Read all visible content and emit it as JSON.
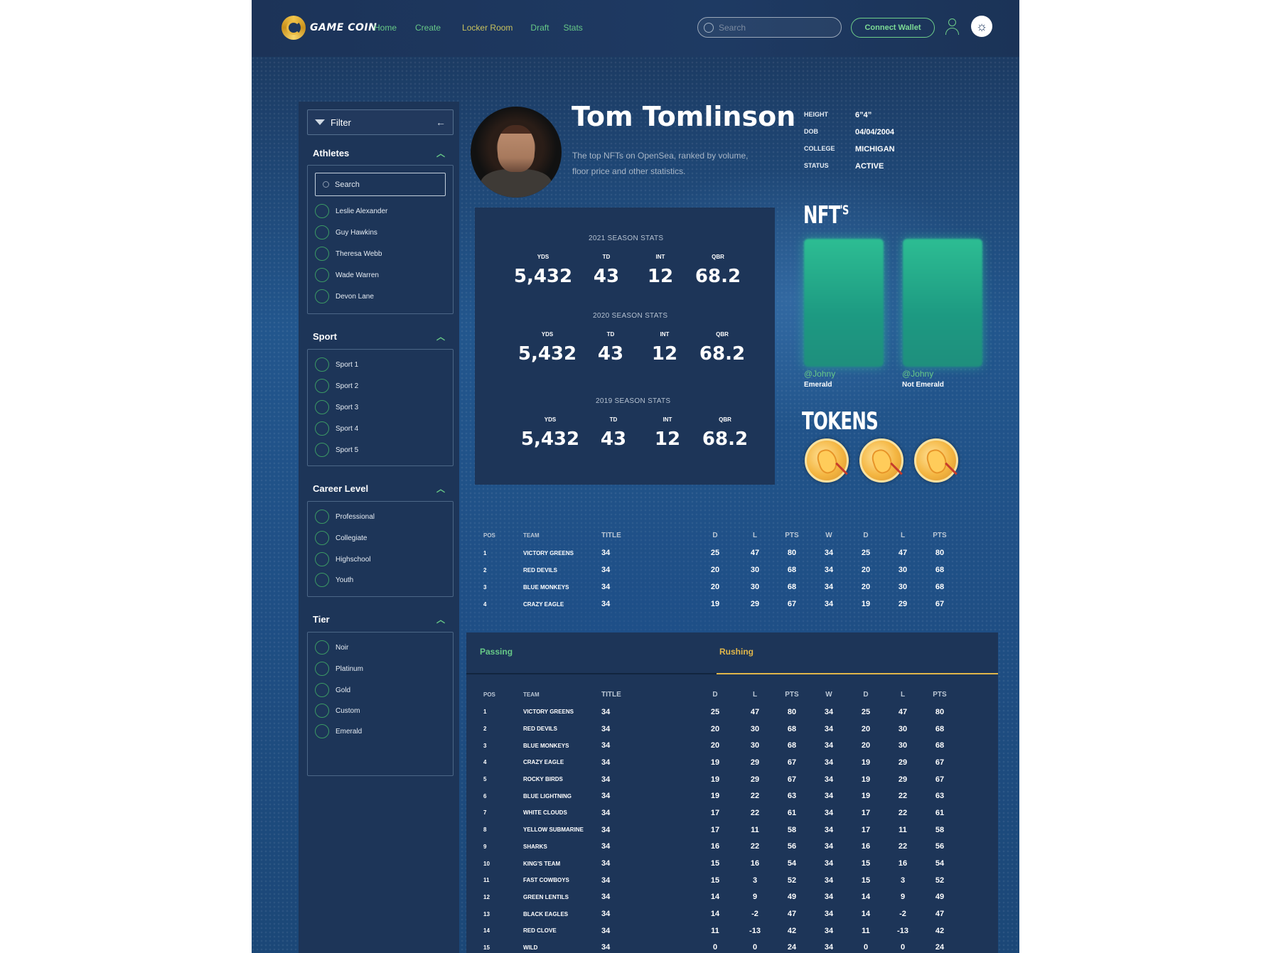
{
  "app": {
    "brand": "GAME COIN"
  },
  "nav": {
    "items": [
      "Home",
      "Create",
      "Locker Room",
      "Draft",
      "Stats"
    ]
  },
  "header": {
    "search_placeholder": "Search",
    "wallet_label": "Connect Wallet",
    "icons": [
      "user-icon",
      "sun-icon"
    ]
  },
  "filter": {
    "label": "Filter",
    "athletes": {
      "title": "Athletes",
      "search_placeholder": "Search",
      "items": [
        "Leslie Alexander",
        "Guy Hawkins",
        "Theresa Webb",
        "Wade Warren",
        "Devon Lane"
      ]
    },
    "sport": {
      "title": "Sport",
      "items": [
        "Sport 1",
        "Sport 2",
        "Sport 3",
        "Sport 4",
        "Sport 5"
      ]
    },
    "career": {
      "title": "Career Level",
      "items": [
        "Professional",
        "Collegiate",
        "Highschool",
        "Youth"
      ]
    },
    "tier": {
      "title": "Tier",
      "items": [
        "Noir",
        "Platinum",
        "Gold",
        "Custom",
        "Emerald"
      ]
    }
  },
  "player": {
    "name": "Tom Tomlinson",
    "tagline": "The top NFTs on OpenSea, ranked by volume, floor price and other statistics.",
    "info": [
      {
        "k": "HEIGHT",
        "v": "6”4”"
      },
      {
        "k": "DOB",
        "v": "04/04/2004"
      },
      {
        "k": "COLLEGE",
        "v": "MICHIGAN"
      },
      {
        "k": "STATUS",
        "v": "ACTIVE"
      }
    ]
  },
  "seasons": [
    {
      "title": "2021 SEASON STATS",
      "labels": [
        "YDS",
        "TD",
        "INT",
        "QBR"
      ],
      "values": [
        "5,432",
        "43",
        "12",
        "68.2"
      ]
    },
    {
      "title": "2020 SEASON STATS",
      "labels": [
        "YDS",
        "TD",
        "INT",
        "QBR"
      ],
      "values": [
        "5,432",
        "43",
        "12",
        "68.2"
      ]
    },
    {
      "title": "2019 SEASON STATS",
      "labels": [
        "YDS",
        "TD",
        "INT",
        "QBR"
      ],
      "values": [
        "5,432",
        "43",
        "12",
        "68.2"
      ]
    }
  ],
  "nfts": {
    "title": "NFT",
    "sup": "'S",
    "cards": [
      {
        "handle": "@Johny",
        "label": "Emerald"
      },
      {
        "handle": "@Johny",
        "label": "Not Emerald"
      }
    ]
  },
  "tokens": {
    "title": "TOKENS",
    "count": 3
  },
  "columns": [
    "POS",
    "TEAM",
    "TITLE",
    "D",
    "L",
    "PTS",
    "W",
    "D",
    "L",
    "PTS"
  ],
  "table1": [
    [
      "1",
      "VICTORY GREENS",
      "34",
      "25",
      "47",
      "80",
      "34",
      "25",
      "47",
      "80"
    ],
    [
      "2",
      "RED DEVILS",
      "34",
      "20",
      "30",
      "68",
      "34",
      "20",
      "30",
      "68"
    ],
    [
      "3",
      "BLUE MONKEYS",
      "34",
      "20",
      "30",
      "68",
      "34",
      "20",
      "30",
      "68"
    ],
    [
      "4",
      "CRAZY EAGLE",
      "34",
      "19",
      "29",
      "67",
      "34",
      "19",
      "29",
      "67"
    ]
  ],
  "tabs": [
    "Passing",
    "Rushing"
  ],
  "table2": [
    [
      "1",
      "VICTORY GREENS",
      "34",
      "25",
      "47",
      "80",
      "34",
      "25",
      "47",
      "80"
    ],
    [
      "2",
      "RED DEVILS",
      "34",
      "20",
      "30",
      "68",
      "34",
      "20",
      "30",
      "68"
    ],
    [
      "3",
      "BLUE MONKEYS",
      "34",
      "20",
      "30",
      "68",
      "34",
      "20",
      "30",
      "68"
    ],
    [
      "4",
      "CRAZY EAGLE",
      "34",
      "19",
      "29",
      "67",
      "34",
      "19",
      "29",
      "67"
    ],
    [
      "5",
      "ROCKY BIRDS",
      "34",
      "19",
      "29",
      "67",
      "34",
      "19",
      "29",
      "67"
    ],
    [
      "6",
      "BLUE LIGHTNING",
      "34",
      "19",
      "22",
      "63",
      "34",
      "19",
      "22",
      "63"
    ],
    [
      "7",
      "WHITE CLOUDS",
      "34",
      "17",
      "22",
      "61",
      "34",
      "17",
      "22",
      "61"
    ],
    [
      "8",
      "YELLOW SUBMARINE",
      "34",
      "17",
      "11",
      "58",
      "34",
      "17",
      "11",
      "58"
    ],
    [
      "9",
      "SHARKS",
      "34",
      "16",
      "22",
      "56",
      "34",
      "16",
      "22",
      "56"
    ],
    [
      "10",
      "KING'S TEAM",
      "34",
      "15",
      "16",
      "54",
      "34",
      "15",
      "16",
      "54"
    ],
    [
      "11",
      "FAST COWBOYS",
      "34",
      "15",
      "3",
      "52",
      "34",
      "15",
      "3",
      "52"
    ],
    [
      "12",
      "GREEN LENTILS",
      "34",
      "14",
      "9",
      "49",
      "34",
      "14",
      "9",
      "49"
    ],
    [
      "13",
      "BLACK EAGLES",
      "34",
      "14",
      "-2",
      "47",
      "34",
      "14",
      "-2",
      "47"
    ],
    [
      "14",
      "RED CLOVE",
      "34",
      "11",
      "-13",
      "42",
      "34",
      "11",
      "-13",
      "42"
    ],
    [
      "15",
      "WILD",
      "34",
      "0",
      "0",
      "24",
      "34",
      "0",
      "0",
      "24"
    ]
  ],
  "colors": {
    "accent_green": "#67c987",
    "accent_gold": "#e0b64a",
    "bg": "#1f4470",
    "panel": "#1d3558"
  }
}
